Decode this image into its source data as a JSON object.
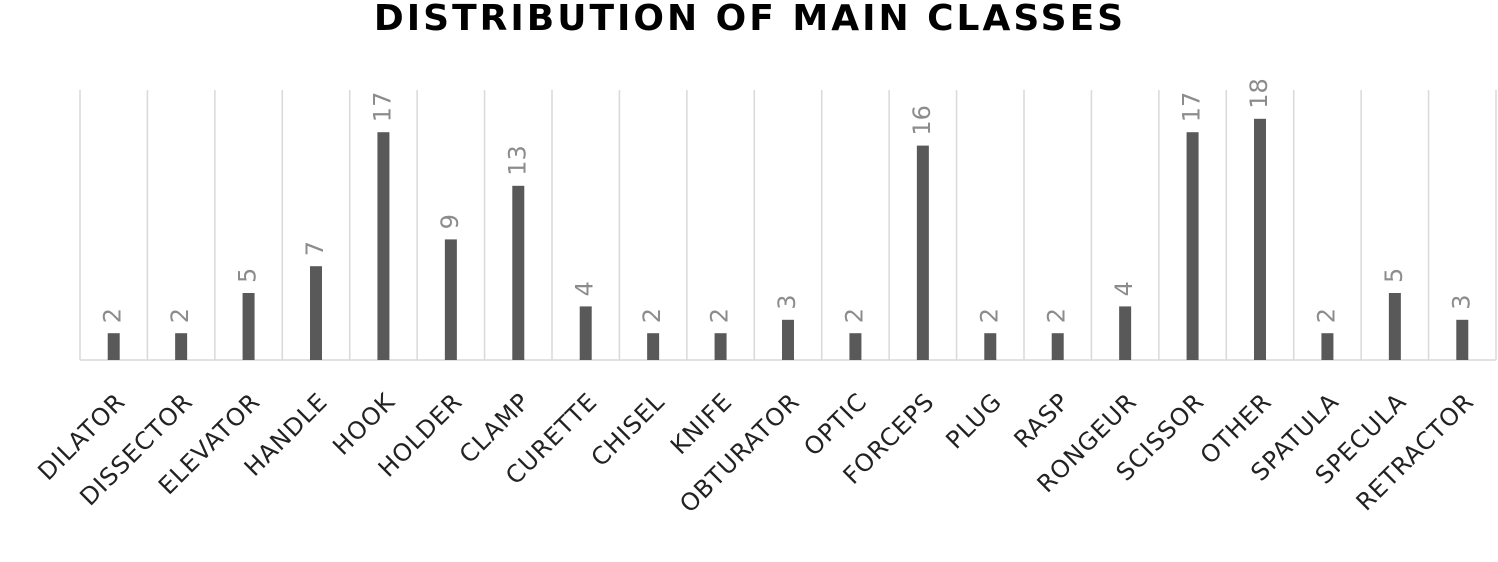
{
  "chart_data": {
    "type": "bar",
    "title": "DISTRIBUTION OF MAIN CLASSES",
    "categories": [
      "DILATOR",
      "DISSECTOR",
      "ELEVATOR",
      "HANDLE",
      "HOOK",
      "HOLDER",
      "CLAMP",
      "CURETTE",
      "CHISEL",
      "KNIFE",
      "OBTURATOR",
      "OPTIC",
      "FORCEPS",
      "PLUG",
      "RASP",
      "RONGEUR",
      "SCISSOR",
      "OTHER",
      "SPATULA",
      "SPECULA",
      "RETRACTOR"
    ],
    "values": [
      2,
      2,
      5,
      7,
      17,
      9,
      13,
      4,
      2,
      2,
      3,
      2,
      16,
      2,
      2,
      4,
      17,
      18,
      2,
      5,
      3
    ],
    "color": "#595959",
    "ylim": [
      0,
      20
    ]
  }
}
